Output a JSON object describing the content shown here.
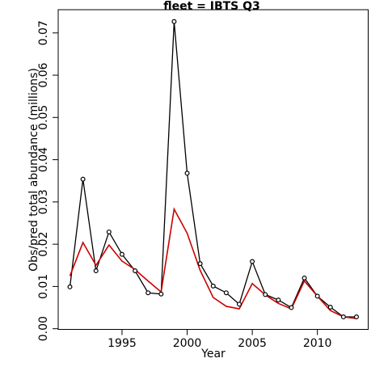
{
  "chart_data": {
    "type": "line",
    "title": "fleet =  IBTS Q3",
    "xlabel": "Year",
    "ylabel": "Obs/pred total abundance (millions)",
    "xlim": [
      1990.1,
      2013.9
    ],
    "ylim": [
      -0.00016,
      0.0755
    ],
    "x_ticks": [
      1995,
      2000,
      2005,
      2010
    ],
    "x_tick_labels": [
      "1995",
      "2000",
      "2005",
      "2010"
    ],
    "y_ticks": [
      0.0,
      0.01,
      0.02,
      0.03,
      0.04,
      0.05,
      0.06,
      0.07
    ],
    "y_tick_labels": [
      "0.00",
      "0.01",
      "0.02",
      "0.03",
      "0.04",
      "0.05",
      "0.06",
      "0.07"
    ],
    "grid": false,
    "x": [
      1991,
      1992,
      1993,
      1994,
      1995,
      1996,
      1997,
      1998,
      1999,
      2000,
      2001,
      2002,
      2003,
      2004,
      2005,
      2006,
      2007,
      2008,
      2009,
      2010,
      2011,
      2012,
      2013
    ],
    "series": [
      {
        "values": [
          0.0099,
          0.0354,
          0.0137,
          0.0229,
          0.0176,
          0.0137,
          0.0085,
          0.0082,
          0.0727,
          0.0368,
          0.0154,
          0.0101,
          0.0085,
          0.0058,
          0.0159,
          0.0081,
          0.0068,
          0.005,
          0.012,
          0.0077,
          0.0051,
          0.0028,
          0.0028
        ],
        "color": "#000000",
        "markers": "open-circle"
      },
      {
        "values": [
          0.0125,
          0.0204,
          0.015,
          0.0198,
          0.016,
          0.014,
          0.0113,
          0.0087,
          0.0283,
          0.0226,
          0.0138,
          0.0074,
          0.0053,
          0.0047,
          0.0107,
          0.008,
          0.006,
          0.0047,
          0.0113,
          0.0077,
          0.0043,
          0.0028,
          0.0024
        ],
        "color": "#cc0000",
        "markers": "none"
      }
    ]
  }
}
